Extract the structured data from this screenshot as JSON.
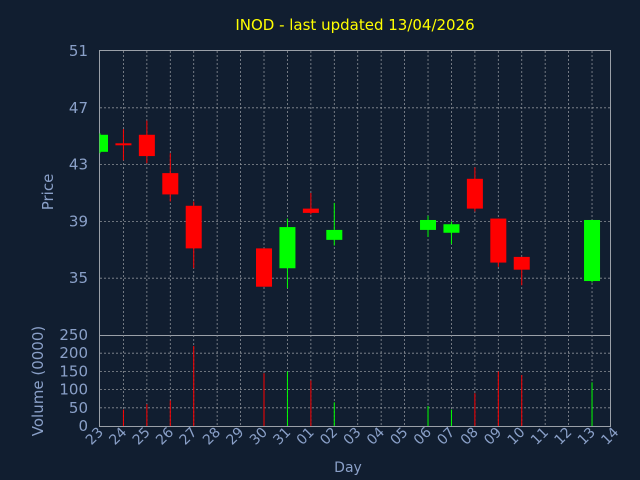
{
  "chart_data": {
    "type": "candlestick",
    "title": "INOD - last updated 13/04/2026",
    "title_color": "#ffff00",
    "xlabel": "Day",
    "price_axis": {
      "label": "Price",
      "ylim": [
        31,
        51
      ],
      "ticks": [
        35,
        39,
        43,
        47,
        51
      ]
    },
    "volume_axis": {
      "label": "Volume (0000)",
      "ylim": [
        0,
        250
      ],
      "ticks": [
        0,
        50,
        100,
        150,
        200,
        250
      ]
    },
    "x_tick_labels": [
      "23",
      "24",
      "25",
      "26",
      "27",
      "28",
      "29",
      "30",
      "31",
      "01",
      "02",
      "03",
      "04",
      "05",
      "06",
      "07",
      "08",
      "09",
      "10",
      "11",
      "12",
      "13",
      "14"
    ],
    "grid": true,
    "up_color": "#00ff00",
    "down_color": "#ff0000",
    "candles": [
      {
        "day": "23",
        "open": 43.9,
        "high": 45.2,
        "low": 43.8,
        "close": 45.1,
        "volume": 0
      },
      {
        "day": "24",
        "open": 44.5,
        "high": 45.5,
        "low": 43.3,
        "close": 44.4,
        "volume": 45
      },
      {
        "day": "25",
        "open": 45.1,
        "high": 46.1,
        "low": 43.1,
        "close": 43.6,
        "volume": 60
      },
      {
        "day": "26",
        "open": 42.4,
        "high": 43.8,
        "low": 40.4,
        "close": 40.9,
        "volume": 70
      },
      {
        "day": "27",
        "open": 40.1,
        "high": 40.4,
        "low": 35.7,
        "close": 37.1,
        "volume": 220
      },
      {
        "day": "30",
        "open": 37.1,
        "high": 37.1,
        "low": 34.4,
        "close": 34.4,
        "volume": 145
      },
      {
        "day": "31",
        "open": 35.7,
        "high": 39.2,
        "low": 34.3,
        "close": 38.6,
        "volume": 150
      },
      {
        "day": "01",
        "open": 39.9,
        "high": 41.0,
        "low": 39.5,
        "close": 39.6,
        "volume": 125
      },
      {
        "day": "02",
        "open": 37.7,
        "high": 40.3,
        "low": 37.3,
        "close": 38.4,
        "volume": 65
      },
      {
        "day": "06",
        "open": 38.4,
        "high": 39.4,
        "low": 37.9,
        "close": 39.1,
        "volume": 55
      },
      {
        "day": "07",
        "open": 38.2,
        "high": 39.0,
        "low": 37.4,
        "close": 38.8,
        "volume": 45
      },
      {
        "day": "08",
        "open": 42.0,
        "high": 42.8,
        "low": 39.7,
        "close": 39.9,
        "volume": 90
      },
      {
        "day": "09",
        "open": 39.2,
        "high": 39.2,
        "low": 35.8,
        "close": 36.1,
        "volume": 150
      },
      {
        "day": "10",
        "open": 36.5,
        "high": 36.5,
        "low": 34.5,
        "close": 35.6,
        "volume": 140
      },
      {
        "day": "13",
        "open": 34.8,
        "high": 39.1,
        "low": 34.7,
        "close": 39.1,
        "volume": 120
      }
    ]
  }
}
